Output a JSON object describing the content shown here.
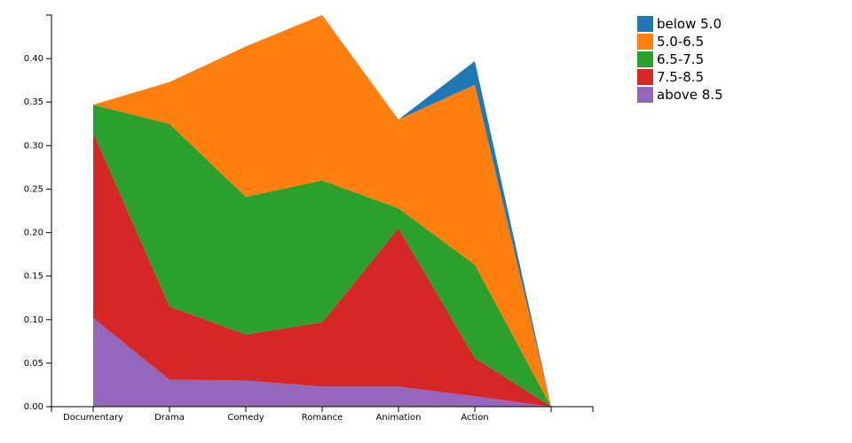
{
  "chart_data": {
    "type": "area",
    "stacked": true,
    "categories": [
      "Documentary",
      "Drama",
      "Comedy",
      "Romance",
      "Animation",
      "Action",
      ""
    ],
    "ylim": [
      0,
      0.45
    ],
    "yticks": [
      "0.00",
      "0.05",
      "0.10",
      "0.15",
      "0.20",
      "0.25",
      "0.30",
      "0.35",
      "0.40"
    ],
    "series": [
      {
        "name": "above 8.5",
        "color": "#9467bd",
        "values": [
          0.102,
          0.031,
          0.03,
          0.023,
          0.023,
          0.012,
          0
        ]
      },
      {
        "name": "7.5-8.5",
        "color": "#d62728",
        "values": [
          0.213,
          0.084,
          0.053,
          0.074,
          0.182,
          0.044,
          0
        ]
      },
      {
        "name": "6.5-7.5",
        "color": "#2ca02c",
        "values": [
          0.032,
          0.21,
          0.158,
          0.163,
          0.023,
          0.107,
          0
        ]
      },
      {
        "name": "5.0-6.5",
        "color": "#ff7f0e",
        "values": [
          0,
          0.048,
          0.173,
          0.19,
          0.102,
          0.207,
          0
        ]
      },
      {
        "name": "below 5.0",
        "color": "#1f77b4",
        "values": [
          0,
          0,
          0,
          0,
          0,
          0.027,
          0
        ]
      }
    ],
    "legend_position": "top-right",
    "legend": [
      "below 5.0",
      "5.0-6.5",
      "6.5-7.5",
      "7.5-8.5",
      "above 8.5"
    ],
    "grid": false
  }
}
